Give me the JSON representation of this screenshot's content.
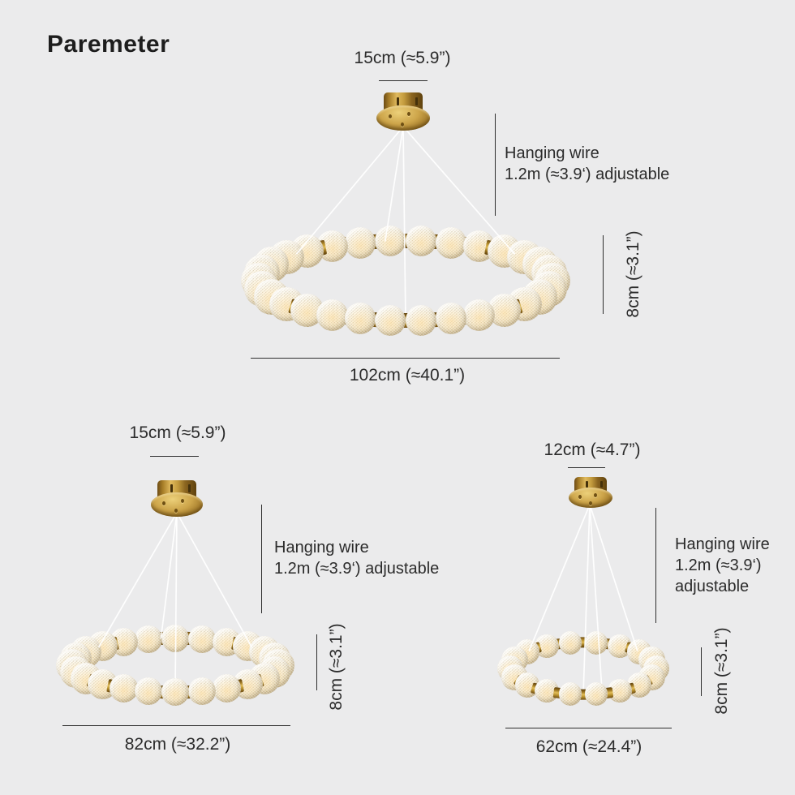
{
  "page": {
    "title": "Paremeter"
  },
  "colors": {
    "background": "#ebebec",
    "text": "#2b2b2b",
    "dimension_line": "#2e2e2e",
    "gold": "#c49c3e",
    "crystal": "#f3ecd9"
  },
  "figures": [
    {
      "canopy_width": "15cm (≈5.9”)",
      "wire_lines": [
        "Hanging wire",
        "1.2m (≈3.9‘) adjustable",
        ""
      ],
      "ring_height": "8cm (≈3.1”)",
      "diameter": "102cm (≈40.1”)"
    },
    {
      "canopy_width": "15cm (≈5.9”)",
      "wire_lines": [
        "Hanging wire",
        "1.2m (≈3.9‘) adjustable",
        ""
      ],
      "ring_height": "8cm (≈3.1”)",
      "diameter": "82cm (≈32.2”)"
    },
    {
      "canopy_width": "12cm (≈4.7”)",
      "wire_lines": [
        "Hanging wire",
        "1.2m (≈3.9‘)",
        "adjustable"
      ],
      "ring_height": "8cm (≈3.1”)",
      "diameter": "62cm (≈24.4”)"
    }
  ]
}
